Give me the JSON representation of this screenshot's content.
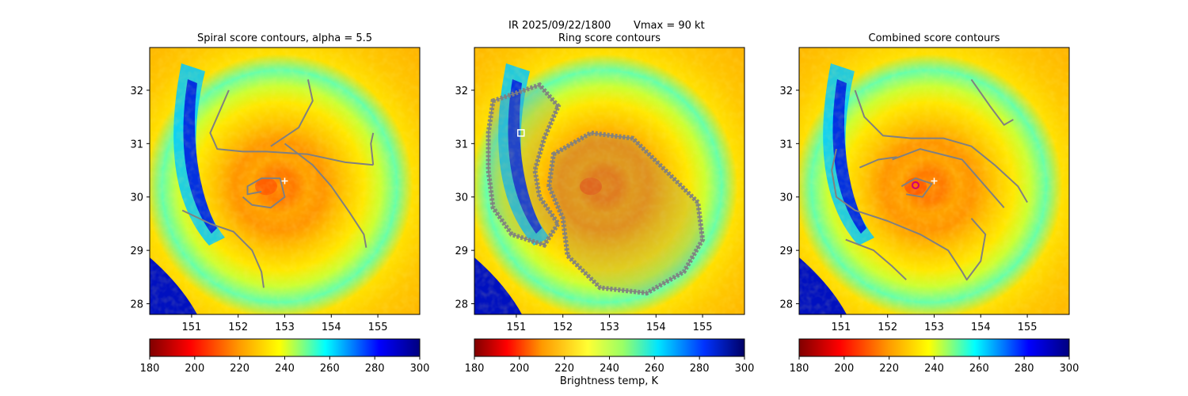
{
  "figure": {
    "suptitle_left": "IR  2025/09/22/1800",
    "suptitle_right": "Vmax = 90 kt",
    "colorbar_label": "Brightness temp, K"
  },
  "palette": {
    "contour": "#808080",
    "center_marker": "#ffffff",
    "ring_marker": "#ffffff",
    "combined_marker": "#cc0077"
  },
  "chart_data": [
    {
      "type": "heatmap",
      "title": "Spiral score contours, alpha =  5.5",
      "xlim": [
        150.1,
        155.9
      ],
      "ylim": [
        27.8,
        32.8
      ],
      "xticks": [
        151,
        152,
        153,
        154,
        155
      ],
      "yticks": [
        28,
        29,
        30,
        31,
        32
      ],
      "colorbar": {
        "min": 180,
        "max": 300,
        "ticks": [
          180,
          200,
          220,
          240,
          260,
          280,
          300
        ]
      },
      "center_marker": {
        "x": 153.0,
        "y": 30.3
      },
      "contours": [
        [
          [
            152.5,
            30.1
          ],
          [
            152.2,
            30.05
          ],
          [
            152.2,
            30.2
          ],
          [
            152.5,
            30.35
          ],
          [
            152.9,
            30.35
          ],
          [
            153.0,
            30.0
          ],
          [
            152.7,
            29.8
          ],
          [
            152.3,
            29.85
          ],
          [
            152.1,
            30.0
          ]
        ],
        [
          [
            151.8,
            32.0
          ],
          [
            151.6,
            31.6
          ],
          [
            151.4,
            31.2
          ],
          [
            151.55,
            30.9
          ],
          [
            152.1,
            30.85
          ],
          [
            152.6,
            30.85
          ],
          [
            153.5,
            30.8
          ],
          [
            154.3,
            30.65
          ],
          [
            154.9,
            30.6
          ]
        ],
        [
          [
            152.7,
            30.95
          ],
          [
            153.3,
            31.3
          ],
          [
            153.6,
            31.8
          ],
          [
            153.5,
            32.2
          ]
        ],
        [
          [
            153.0,
            31.0
          ],
          [
            153.6,
            30.6
          ],
          [
            154.0,
            30.2
          ],
          [
            154.4,
            29.7
          ],
          [
            154.7,
            29.3
          ],
          [
            154.75,
            29.05
          ]
        ],
        [
          [
            154.9,
            30.6
          ],
          [
            154.85,
            31.0
          ],
          [
            154.9,
            31.2
          ]
        ],
        [
          [
            150.8,
            29.75
          ],
          [
            151.4,
            29.5
          ],
          [
            151.9,
            29.35
          ],
          [
            152.3,
            29.0
          ],
          [
            152.5,
            28.6
          ],
          [
            152.55,
            28.3
          ]
        ]
      ]
    },
    {
      "type": "heatmap",
      "title": "Ring score contours",
      "xlim": [
        150.1,
        155.9
      ],
      "ylim": [
        27.8,
        32.8
      ],
      "xticks": [
        151,
        152,
        153,
        154,
        155
      ],
      "yticks": [
        28,
        29,
        30,
        31,
        32
      ],
      "colorbar": {
        "min": 180,
        "max": 300,
        "ticks": [
          180,
          200,
          220,
          240,
          260,
          280,
          300
        ]
      },
      "ring_marker": {
        "x": 151.1,
        "y": 31.2
      },
      "contour_regions": [
        [
          [
            150.5,
            31.8
          ],
          [
            151.5,
            32.1
          ],
          [
            151.9,
            31.7
          ],
          [
            151.6,
            31.1
          ],
          [
            151.4,
            30.5
          ],
          [
            151.5,
            30.0
          ],
          [
            151.9,
            29.5
          ],
          [
            151.6,
            29.1
          ],
          [
            150.9,
            29.3
          ],
          [
            150.5,
            29.8
          ],
          [
            150.4,
            30.5
          ],
          [
            150.4,
            31.2
          ]
        ],
        [
          [
            151.8,
            30.8
          ],
          [
            152.6,
            31.2
          ],
          [
            153.5,
            31.1
          ],
          [
            154.2,
            30.5
          ],
          [
            154.9,
            29.9
          ],
          [
            155.0,
            29.2
          ],
          [
            154.6,
            28.6
          ],
          [
            153.8,
            28.2
          ],
          [
            152.8,
            28.3
          ],
          [
            152.1,
            28.9
          ],
          [
            152.0,
            29.6
          ],
          [
            151.7,
            30.2
          ]
        ]
      ]
    },
    {
      "type": "heatmap",
      "title": "Combined score contours",
      "xlim": [
        150.1,
        155.9
      ],
      "ylim": [
        27.8,
        32.8
      ],
      "xticks": [
        151,
        152,
        153,
        154,
        155
      ],
      "yticks": [
        28,
        29,
        30,
        31,
        32
      ],
      "colorbar": {
        "min": 180,
        "max": 300,
        "ticks": [
          180,
          200,
          220,
          240,
          260,
          280,
          300
        ]
      },
      "center_marker": {
        "x": 153.0,
        "y": 30.3
      },
      "combined_marker": {
        "x": 152.6,
        "y": 30.22
      },
      "contours": [
        [
          [
            152.3,
            30.2
          ],
          [
            152.6,
            30.35
          ],
          [
            152.95,
            30.25
          ],
          [
            152.75,
            30.0
          ],
          [
            152.4,
            30.05
          ]
        ],
        [
          [
            152.1,
            30.7
          ],
          [
            152.7,
            30.9
          ],
          [
            153.6,
            30.7
          ],
          [
            154.1,
            30.2
          ],
          [
            154.5,
            29.8
          ]
        ],
        [
          [
            151.4,
            30.55
          ],
          [
            151.8,
            30.7
          ],
          [
            152.2,
            30.75
          ]
        ],
        [
          [
            150.9,
            30.9
          ],
          [
            150.8,
            30.5
          ],
          [
            150.9,
            30.0
          ],
          [
            151.3,
            29.75
          ],
          [
            152.0,
            29.55
          ],
          [
            152.7,
            29.3
          ],
          [
            153.3,
            29.0
          ],
          [
            153.6,
            28.6
          ],
          [
            153.7,
            28.45
          ],
          [
            154.0,
            28.8
          ],
          [
            154.1,
            29.3
          ],
          [
            153.8,
            29.6
          ]
        ],
        [
          [
            151.3,
            32.0
          ],
          [
            151.5,
            31.5
          ],
          [
            151.9,
            31.15
          ],
          [
            152.5,
            31.1
          ],
          [
            153.2,
            31.1
          ],
          [
            153.8,
            30.95
          ],
          [
            154.3,
            30.6
          ],
          [
            154.8,
            30.2
          ],
          [
            155.0,
            29.9
          ]
        ],
        [
          [
            153.8,
            32.2
          ],
          [
            154.2,
            31.7
          ],
          [
            154.5,
            31.35
          ],
          [
            154.7,
            31.45
          ]
        ],
        [
          [
            151.1,
            29.2
          ],
          [
            151.7,
            29.0
          ],
          [
            152.1,
            28.7
          ],
          [
            152.4,
            28.45
          ]
        ]
      ]
    }
  ]
}
